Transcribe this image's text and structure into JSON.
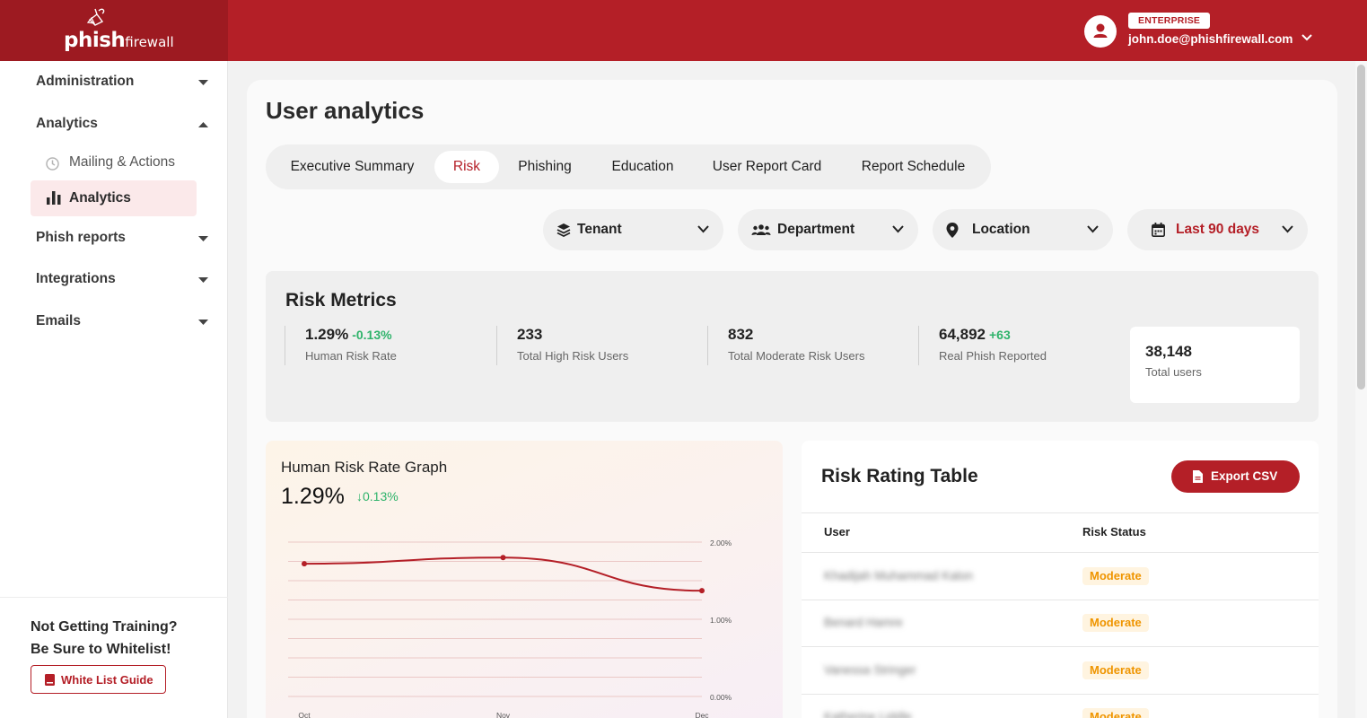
{
  "brand": {
    "logo_main": "phish",
    "logo_sub": "firewall"
  },
  "header": {
    "plan_badge": "ENTERPRISE",
    "user_email": "john.doe@phishfirewall.com"
  },
  "sidebar": {
    "items": [
      {
        "label": "Administration",
        "expanded": false
      },
      {
        "label": "Analytics",
        "expanded": true
      },
      {
        "label": "Phish reports",
        "expanded": false
      },
      {
        "label": "Integrations",
        "expanded": false
      },
      {
        "label": "Emails",
        "expanded": false
      }
    ],
    "analytics_sub": [
      {
        "label": "Mailing & Actions",
        "icon": "history-icon",
        "active": false
      },
      {
        "label": "Analytics",
        "icon": "bar-chart-icon",
        "active": true
      }
    ],
    "promo_line1": "Not Getting Training?",
    "promo_line2": "Be Sure to Whitelist!",
    "whitelist_button": "White List Guide"
  },
  "page": {
    "title": "User analytics"
  },
  "tabs": [
    {
      "label": "Executive Summary",
      "active": false
    },
    {
      "label": "Risk",
      "active": true
    },
    {
      "label": "Phishing",
      "active": false
    },
    {
      "label": "Education",
      "active": false
    },
    {
      "label": "User Report Card",
      "active": false
    },
    {
      "label": "Report Schedule",
      "active": false
    }
  ],
  "filters": [
    {
      "label": "Tenant",
      "icon": "layers-icon"
    },
    {
      "label": "Department",
      "icon": "users-icon"
    },
    {
      "label": "Location",
      "icon": "map-pin-icon"
    },
    {
      "label": "Last 90 days",
      "icon": "calendar-icon"
    }
  ],
  "risk_metrics": {
    "title": "Risk Metrics",
    "items": [
      {
        "value": "1.29%",
        "delta": "-0.13%",
        "label": "Human Risk Rate"
      },
      {
        "value": "233",
        "delta": "",
        "label": "Total High Risk Users"
      },
      {
        "value": "832",
        "delta": "",
        "label": "Total Moderate Risk Users"
      },
      {
        "value": "64,892",
        "delta": "+63",
        "label": "Real Phish Reported"
      }
    ],
    "total": {
      "value": "38,148",
      "label": "Total users"
    }
  },
  "graph": {
    "title": "Human Risk Rate Graph",
    "value": "1.29%",
    "delta": "↓0.13%"
  },
  "chart_data": {
    "type": "line",
    "title": "Human Risk Rate Graph",
    "categories": [
      "Oct",
      "Nov",
      "Dec"
    ],
    "series": [
      {
        "values": [
          1.72,
          1.8,
          1.37
        ]
      }
    ],
    "ylim": [
      0,
      2
    ],
    "yticks": [
      "2.00%",
      "1.00%",
      "0.00%"
    ],
    "grid": true,
    "line_color": "#b41f27"
  },
  "risk_table": {
    "title": "Risk Rating Table",
    "export_label": "Export CSV",
    "columns": [
      "User",
      "Risk Status"
    ],
    "rows": [
      {
        "user": "Khadijah Muhammad Kalon",
        "status": "Moderate"
      },
      {
        "user": "Benard Hamre",
        "status": "Moderate"
      },
      {
        "user": "Vanessa Stringer",
        "status": "Moderate"
      },
      {
        "user": "Katherine Liddle",
        "status": "Moderate"
      }
    ]
  },
  "colors": {
    "brand_red": "#b41f27",
    "positive": "#2fb36b",
    "moderate": "#ef9500"
  }
}
